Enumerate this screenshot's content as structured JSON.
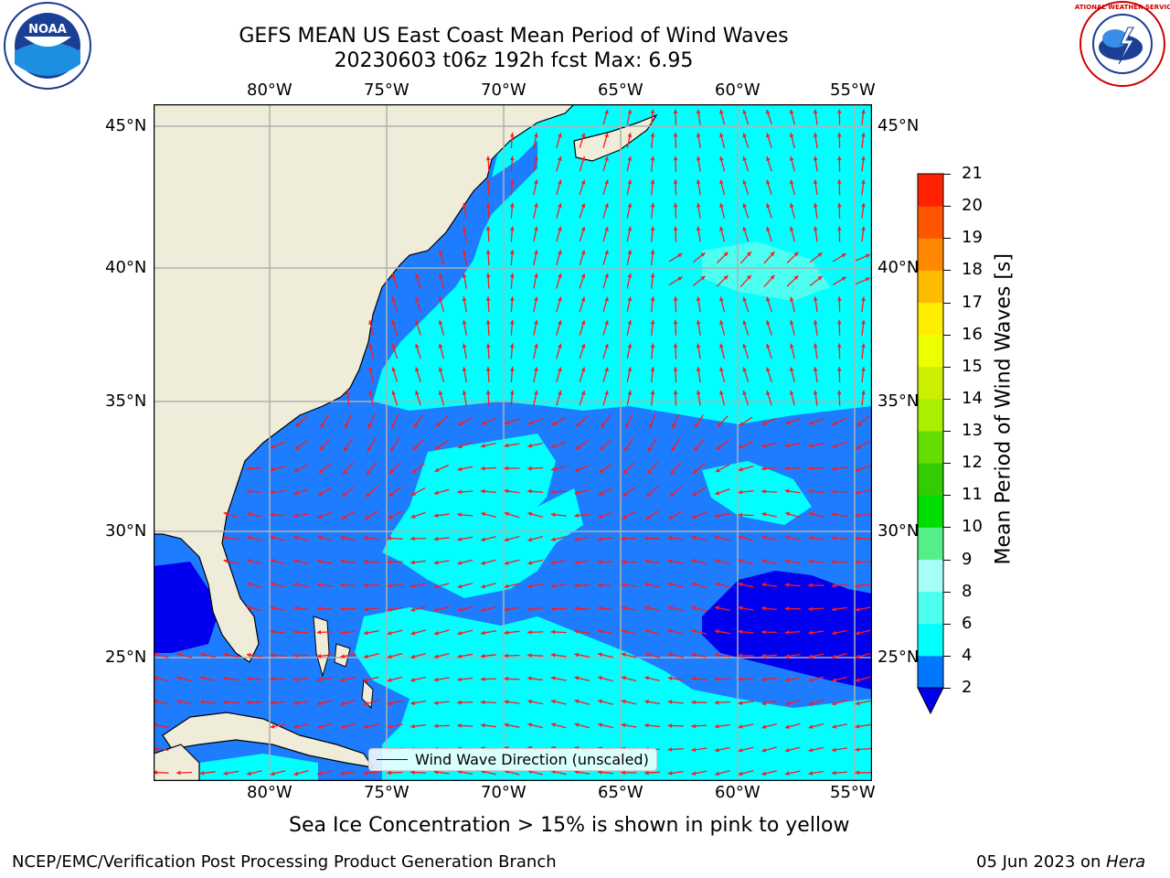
{
  "header": {
    "title_line1": "GEFS MEAN US East Coast Mean Period of Wind Waves",
    "title_line2": "20230603 t06z 192h fcst   Max: 6.95"
  },
  "map": {
    "lon_labels": [
      "80°W",
      "75°W",
      "70°W",
      "65°W",
      "60°W",
      "55°W"
    ],
    "lat_labels": [
      "45°N",
      "40°N",
      "35°N",
      "30°N",
      "25°N"
    ],
    "legend_label": "Wind Wave Direction (unscaled)",
    "colors": {
      "ocean_light": "#00ffff",
      "ocean_mid": "#1e7cff",
      "ocean_dark": "#0000ee",
      "land": "#efedda",
      "arrow": "#ff1a1a",
      "grid": "#b0b0b0"
    }
  },
  "colorbar": {
    "label": "Mean Period of Wind Waves [s]",
    "ticks": [
      "2",
      "4",
      "6",
      "8",
      "9",
      "10",
      "11",
      "12",
      "13",
      "14",
      "15",
      "16",
      "17",
      "18",
      "19",
      "20",
      "21"
    ],
    "colors": [
      "#0077ff",
      "#00ffff",
      "#4dfff0",
      "#a6fff7",
      "#55ee88",
      "#00dd00",
      "#33cc00",
      "#66dd00",
      "#aaee00",
      "#ccee00",
      "#eeff00",
      "#ffee00",
      "#ffbb00",
      "#ff8800",
      "#ff5500",
      "#ff2200"
    ],
    "extend_color": "#0000ee"
  },
  "footer": {
    "sea_ice_note": "Sea Ice Concentration > 15% is shown in pink to yellow",
    "credit": "NCEP/EMC/Verification Post Processing Product Generation Branch",
    "date_text": "05 Jun 2023 on ",
    "machine": "Hera"
  },
  "logos": {
    "left": "NOAA",
    "right": "NATIONAL WEATHER SERVICE"
  }
}
